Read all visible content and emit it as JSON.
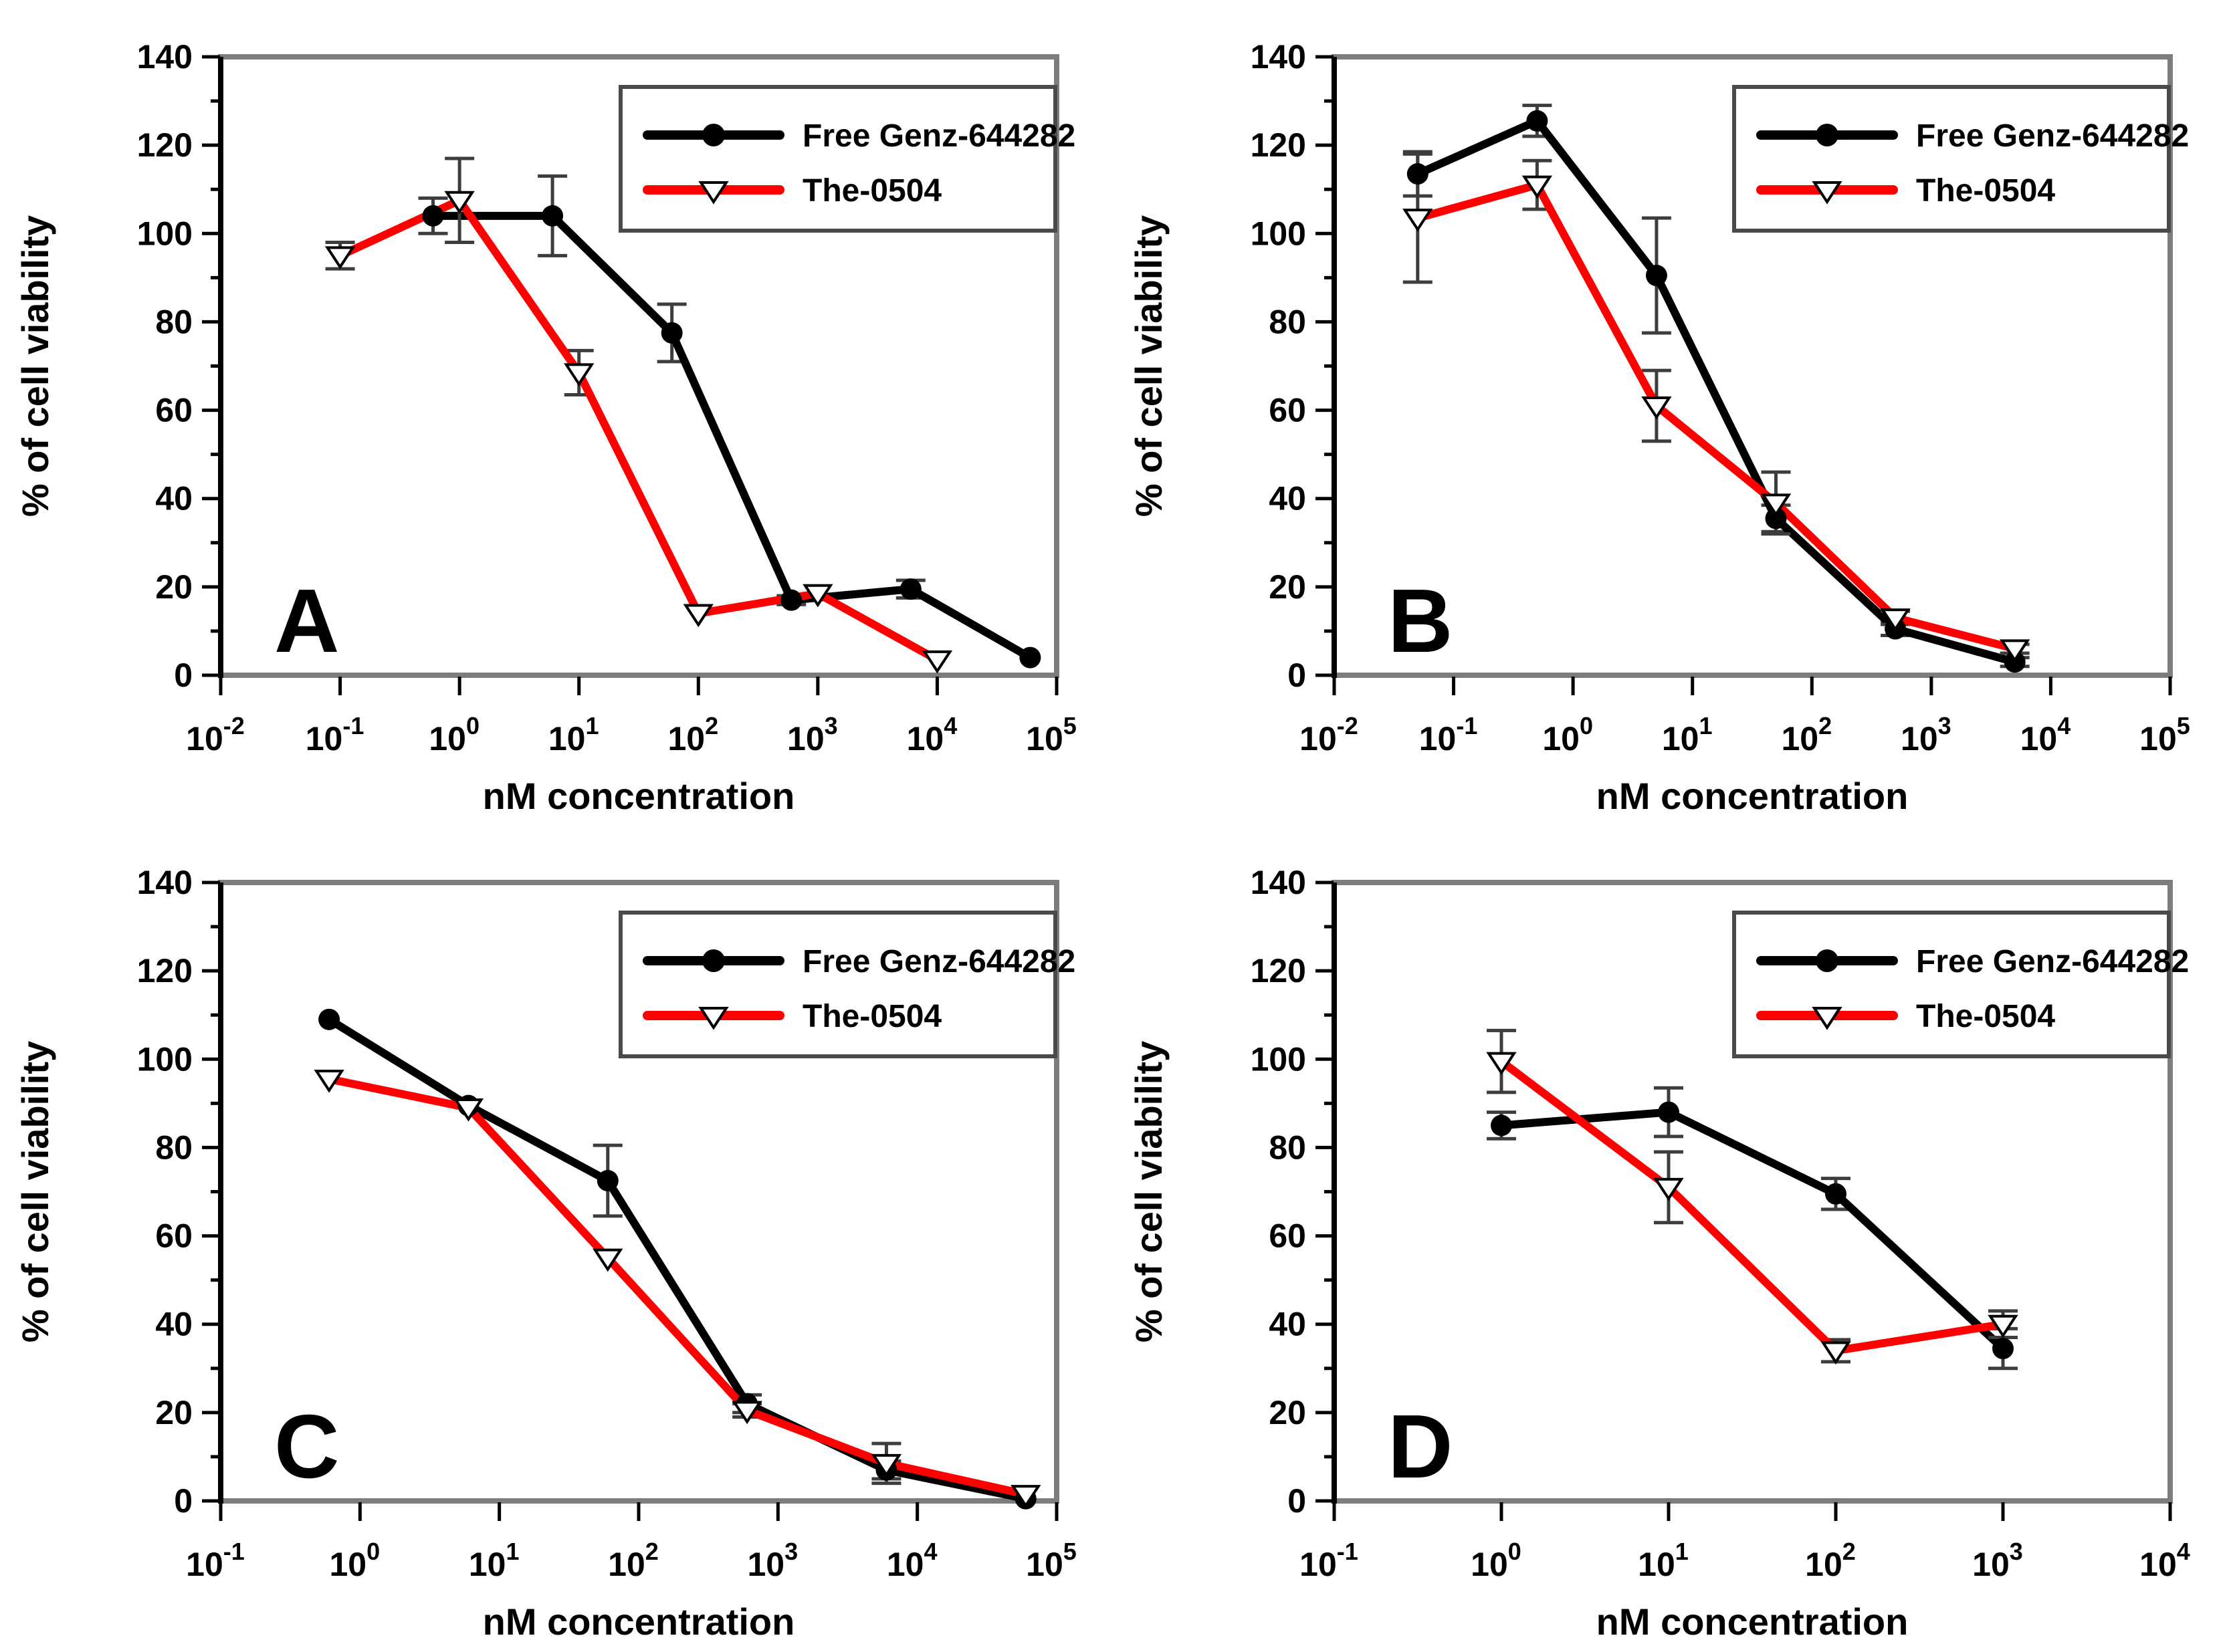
{
  "figure": {
    "background": "#ffffff",
    "xlabel": "nM concentration",
    "ylabel": "% of cell viability",
    "legend": {
      "position": "top-right",
      "items": [
        {
          "label": "Free Genz-644282",
          "color": "#000000",
          "marker": "filled-circle"
        },
        {
          "label": "The-0504",
          "color": "#ff0000",
          "marker": "open-triangle-down"
        }
      ]
    }
  },
  "style": {
    "frame_color": "#7d7d7d",
    "left_axis_color": "#000000",
    "tick_color": "#000000",
    "error_bar_color": "#3d3d3d",
    "legend_border_color": "#4a4a4a",
    "black_series_color": "#000000",
    "red_series_color": "#ff0000",
    "text_color": "#000000"
  },
  "chart_data": [
    {
      "type": "line",
      "panel_letter": "A",
      "xlabel": "nM concentration",
      "ylabel": "% of cell viability",
      "x_scale": "log",
      "x_exponent_range": [
        -2,
        5
      ],
      "x_tick_exponents": [
        -2,
        -1,
        0,
        1,
        2,
        3,
        4,
        5
      ],
      "ylim": [
        0,
        140
      ],
      "y_major_ticks": [
        0,
        20,
        40,
        60,
        80,
        100,
        120,
        140
      ],
      "y_minor_step": 10,
      "series": [
        {
          "name": "Free Genz-644282",
          "color": "#000000",
          "marker": "filled-circle",
          "x": [
            0.6,
            6,
            60,
            600,
            6000,
            60000
          ],
          "y": [
            104,
            104,
            77.5,
            17,
            19.5,
            4
          ],
          "err": [
            4,
            9,
            6.5,
            1,
            2,
            0.5
          ]
        },
        {
          "name": "The-0504",
          "color": "#ff0000",
          "marker": "open-triangle-down",
          "x": [
            0.1,
            1,
            10,
            100,
            1000,
            10000
          ],
          "y": [
            95,
            107.5,
            68.5,
            14,
            18.5,
            3.5
          ],
          "err": [
            3,
            9.5,
            5,
            0.5,
            0.5,
            0.5
          ]
        }
      ]
    },
    {
      "type": "line",
      "panel_letter": "B",
      "xlabel": "nM concentration",
      "ylabel": "% of cell viability",
      "x_scale": "log",
      "x_exponent_range": [
        -2,
        5
      ],
      "x_tick_exponents": [
        -2,
        -1,
        0,
        1,
        2,
        3,
        4,
        5
      ],
      "ylim": [
        0,
        140
      ],
      "y_major_ticks": [
        0,
        20,
        40,
        60,
        80,
        100,
        120,
        140
      ],
      "y_minor_step": 10,
      "series": [
        {
          "name": "Free Genz-644282",
          "color": "#000000",
          "marker": "filled-circle",
          "x": [
            0.05,
            0.5,
            5,
            50,
            500,
            5000
          ],
          "y": [
            113.5,
            125.5,
            90.5,
            35.5,
            10.5,
            3
          ],
          "err": [
            5,
            3.5,
            13,
            3,
            1.5,
            1
          ]
        },
        {
          "name": "The-0504",
          "color": "#ff0000",
          "marker": "open-triangle-down",
          "x": [
            0.05,
            0.5,
            5,
            50,
            500,
            5000
          ],
          "y": [
            103.5,
            111,
            61,
            39,
            13,
            6
          ],
          "err": [
            14.5,
            5.5,
            8,
            7,
            1.5,
            1
          ]
        }
      ]
    },
    {
      "type": "line",
      "panel_letter": "C",
      "xlabel": "nM concentration",
      "ylabel": "% of cell viability",
      "x_scale": "log",
      "x_exponent_range": [
        -1,
        5
      ],
      "x_tick_exponents": [
        -1,
        0,
        1,
        2,
        3,
        4,
        5
      ],
      "ylim": [
        0,
        140
      ],
      "y_major_ticks": [
        0,
        20,
        40,
        60,
        80,
        100,
        120,
        140
      ],
      "y_minor_step": 10,
      "series": [
        {
          "name": "Free Genz-644282",
          "color": "#000000",
          "marker": "filled-circle",
          "x": [
            0.6,
            6,
            60,
            600,
            6000,
            60000
          ],
          "y": [
            109,
            89.5,
            72.5,
            22,
            7,
            0.5
          ],
          "err": [
            0,
            0,
            8,
            2,
            2,
            0
          ]
        },
        {
          "name": "The-0504",
          "color": "#ff0000",
          "marker": "open-triangle-down",
          "x": [
            0.6,
            6,
            60,
            600,
            6000,
            60000
          ],
          "y": [
            95.5,
            89,
            55,
            20.5,
            8.5,
            1.5
          ],
          "err": [
            0,
            0,
            0,
            1.5,
            4.5,
            0
          ]
        }
      ]
    },
    {
      "type": "line",
      "panel_letter": "D",
      "xlabel": "nM concentration",
      "ylabel": "% of cell viability",
      "x_scale": "log",
      "x_exponent_range": [
        -1,
        4
      ],
      "x_tick_exponents": [
        -1,
        0,
        1,
        2,
        3,
        4
      ],
      "ylim": [
        0,
        140
      ],
      "y_major_ticks": [
        0,
        20,
        40,
        60,
        80,
        100,
        120,
        140
      ],
      "y_minor_step": 10,
      "series": [
        {
          "name": "Free Genz-644282",
          "color": "#000000",
          "marker": "filled-circle",
          "x": [
            1,
            10,
            100,
            1000
          ],
          "y": [
            85,
            88,
            69.5,
            34.5
          ],
          "err": [
            3,
            5.5,
            3.5,
            4.5
          ]
        },
        {
          "name": "The-0504",
          "color": "#ff0000",
          "marker": "open-triangle-down",
          "x": [
            1,
            10,
            100,
            1000
          ],
          "y": [
            99.5,
            71,
            34,
            40
          ],
          "err": [
            7,
            8,
            2.5,
            3
          ]
        }
      ]
    }
  ]
}
